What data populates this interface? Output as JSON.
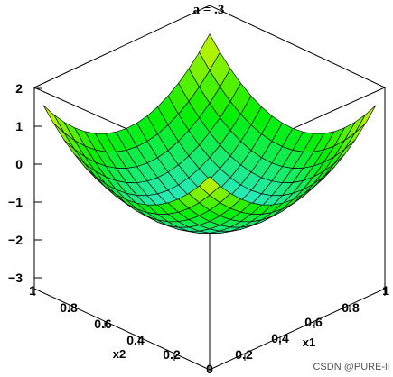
{
  "watermark": "CSDN @PURE-li",
  "chart_data": {
    "type": "surface",
    "title": "a = .3",
    "parameter": {
      "name": "a",
      "value": 0.3
    },
    "xlabel": "x1",
    "ylabel": "x2",
    "zlabel": "",
    "xlim": [
      0,
      1
    ],
    "ylim": [
      0,
      1
    ],
    "zlim": [
      -3,
      2
    ],
    "z_ticks": [
      "2",
      "1",
      "0",
      "−1",
      "−2",
      "−3"
    ],
    "x1_ticks": [
      "0",
      "0.2",
      "0.4",
      "0.6",
      "0.8",
      "1"
    ],
    "x2_ticks": [
      "1",
      "0.8",
      "0.6",
      "0.4",
      "0.2",
      "0"
    ],
    "surface_shape": "bowl with minimum ≈ −2 at center (x1=0.5, x2=0.5), rising to ≈ 1.1 at corners",
    "z_min": -2.0,
    "z_corner": 1.1,
    "colormap": [
      "#2ee8dd",
      "#00f000",
      "#e6f200"
    ]
  }
}
